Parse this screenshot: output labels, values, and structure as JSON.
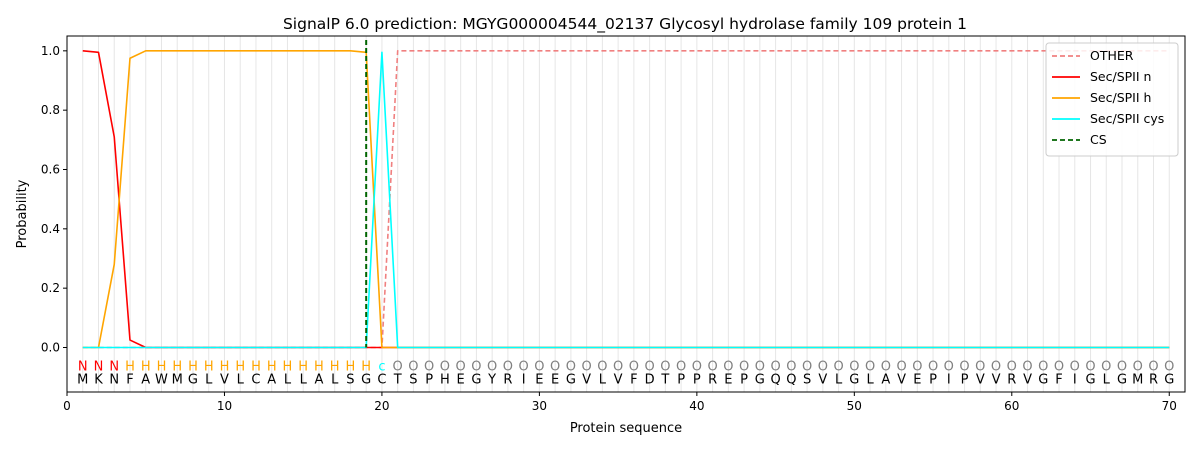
{
  "chart_data": {
    "type": "line",
    "title": "SignalP 6.0 prediction: MGYG000004544_02137 Glycosyl hydrolase family 109 protein 1",
    "xlabel": "Protein sequence",
    "ylabel": "Probability",
    "xlim": [
      0,
      71
    ],
    "ylim": [
      -0.15,
      1.05
    ],
    "x_ticks": [
      0,
      10,
      20,
      30,
      40,
      50,
      60,
      70
    ],
    "y_ticks": [
      0.0,
      0.2,
      0.4,
      0.6,
      0.8,
      1.0
    ],
    "x_tick_labels": [
      "0",
      "10",
      "20",
      "30",
      "40",
      "50",
      "60",
      "70"
    ],
    "y_tick_labels": [
      "0.0",
      "0.2",
      "0.4",
      "0.6",
      "0.8",
      "1.0"
    ],
    "grid": "vertical lines at each residue position",
    "legend_position": "top-right",
    "sequence": "MKNFAWMGLVLCALLALSGCTSPHEGYRIEEGVLVFDTPPREPGQQSVLGLAVEPIPVVRVGFIGLGMRG",
    "labels": "NNNHHHHHHHHHHHHHHHHCOOOOOOOOOOOOOOOOOOOOOOOOOOOOOOOOOOOOOOOOOOOOOOOOOO",
    "label_colors": {
      "N": "#ff0000",
      "H": "#ffa500",
      "C": "#00ffff",
      "O": "#808080"
    },
    "series": [
      {
        "name": "OTHER",
        "color": "#f08080",
        "style": "dashed",
        "values": [
          0,
          0,
          0,
          0,
          0,
          0,
          0,
          0,
          0,
          0,
          0,
          0,
          0,
          0,
          0,
          0,
          0,
          0,
          0,
          0,
          1,
          1,
          1,
          1,
          1,
          1,
          1,
          1,
          1,
          1,
          1,
          1,
          1,
          1,
          1,
          1,
          1,
          1,
          1,
          1,
          1,
          1,
          1,
          1,
          1,
          1,
          1,
          1,
          1,
          1,
          1,
          1,
          1,
          1,
          1,
          1,
          1,
          1,
          1,
          1,
          1,
          1,
          1,
          1,
          1,
          1,
          1,
          1,
          1,
          1
        ]
      },
      {
        "name": "Sec/SPII n",
        "color": "#ff0000",
        "style": "solid",
        "values": [
          1.0,
          0.995,
          0.71,
          0.025,
          0,
          0,
          0,
          0,
          0,
          0,
          0,
          0,
          0,
          0,
          0,
          0,
          0,
          0,
          0,
          0,
          0,
          0,
          0,
          0,
          0,
          0,
          0,
          0,
          0,
          0,
          0,
          0,
          0,
          0,
          0,
          0,
          0,
          0,
          0,
          0,
          0,
          0,
          0,
          0,
          0,
          0,
          0,
          0,
          0,
          0,
          0,
          0,
          0,
          0,
          0,
          0,
          0,
          0,
          0,
          0,
          0,
          0,
          0,
          0,
          0,
          0,
          0,
          0,
          0,
          0
        ]
      },
      {
        "name": "Sec/SPII h",
        "color": "#ffa500",
        "style": "solid",
        "values": [
          0,
          0,
          0.28,
          0.975,
          1.0,
          1.0,
          1.0,
          1.0,
          1.0,
          1.0,
          1.0,
          1.0,
          1.0,
          1.0,
          1.0,
          1.0,
          1.0,
          1.0,
          0.995,
          0,
          0,
          0,
          0,
          0,
          0,
          0,
          0,
          0,
          0,
          0,
          0,
          0,
          0,
          0,
          0,
          0,
          0,
          0,
          0,
          0,
          0,
          0,
          0,
          0,
          0,
          0,
          0,
          0,
          0,
          0,
          0,
          0,
          0,
          0,
          0,
          0,
          0,
          0,
          0,
          0,
          0,
          0,
          0,
          0,
          0,
          0,
          0,
          0,
          0,
          0
        ]
      },
      {
        "name": "Sec/SPII cys",
        "color": "#00ffff",
        "style": "solid",
        "values": [
          0,
          0,
          0,
          0,
          0,
          0,
          0,
          0,
          0,
          0,
          0,
          0,
          0,
          0,
          0,
          0,
          0,
          0,
          0,
          0.995,
          0,
          0,
          0,
          0,
          0,
          0,
          0,
          0,
          0,
          0,
          0,
          0,
          0,
          0,
          0,
          0,
          0,
          0,
          0,
          0,
          0,
          0,
          0,
          0,
          0,
          0,
          0,
          0,
          0,
          0,
          0,
          0,
          0,
          0,
          0,
          0,
          0,
          0,
          0,
          0,
          0,
          0,
          0,
          0,
          0,
          0,
          0,
          0,
          0,
          0
        ]
      },
      {
        "name": "CS",
        "color": "#006400",
        "style": "dashed",
        "vline_x": 19
      }
    ]
  }
}
